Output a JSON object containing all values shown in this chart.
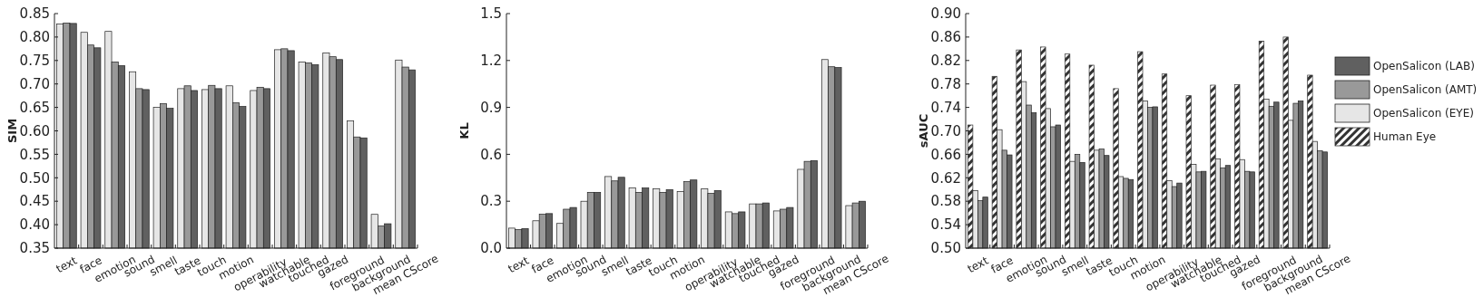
{
  "chart_data": [
    {
      "type": "bar",
      "ylabel": "SIM",
      "categories": [
        "text",
        "face",
        "emotion",
        "sound",
        "smell",
        "taste",
        "touch",
        "motion",
        "operability",
        "watchable",
        "touched",
        "gazed",
        "foreground",
        "background",
        "mean CScore"
      ],
      "series": [
        {
          "color": "#e6e6e6",
          "values": [
            0.828,
            0.81,
            0.812,
            0.726,
            0.65,
            0.69,
            0.688,
            0.696,
            0.686,
            0.773,
            0.747,
            0.766,
            0.621,
            0.422,
            0.751
          ]
        },
        {
          "color": "#999999",
          "values": [
            0.83,
            0.783,
            0.747,
            0.69,
            0.658,
            0.696,
            0.697,
            0.66,
            0.693,
            0.775,
            0.745,
            0.758,
            0.587,
            0.397,
            0.736
          ]
        },
        {
          "color": "#606060",
          "values": [
            0.829,
            0.777,
            0.739,
            0.688,
            0.648,
            0.686,
            0.69,
            0.652,
            0.69,
            0.771,
            0.741,
            0.752,
            0.585,
            0.402,
            0.73
          ]
        }
      ],
      "ylim": [
        0.35,
        0.85
      ],
      "yticks": [
        {
          "value": 0.35,
          "label": "0.35"
        },
        {
          "value": 0.4,
          "label": "0.40"
        },
        {
          "value": 0.45,
          "label": "0.45"
        },
        {
          "value": 0.5,
          "label": "0.50"
        },
        {
          "value": 0.55,
          "label": "0.55"
        },
        {
          "value": 0.6,
          "label": "0.60"
        },
        {
          "value": 0.65,
          "label": "0.65"
        },
        {
          "value": 0.7,
          "label": "0.70"
        },
        {
          "value": 0.75,
          "label": "0.75"
        },
        {
          "value": 0.8,
          "label": "0.80"
        },
        {
          "value": 0.85,
          "label": "0.85"
        }
      ],
      "grid": false,
      "legend": false
    },
    {
      "type": "bar",
      "ylabel": "KL",
      "categories": [
        "text",
        "face",
        "emotion",
        "sound",
        "smell",
        "taste",
        "touch",
        "motion",
        "operability",
        "watchable",
        "touched",
        "gazed",
        "foreground",
        "background",
        "mean CScore"
      ],
      "series": [
        {
          "color": "#e6e6e6",
          "values": [
            0.128,
            0.175,
            0.158,
            0.3,
            0.458,
            0.385,
            0.379,
            0.362,
            0.379,
            0.232,
            0.283,
            0.238,
            0.504,
            1.206,
            0.272
          ]
        },
        {
          "color": "#999999",
          "values": [
            0.119,
            0.217,
            0.249,
            0.357,
            0.43,
            0.357,
            0.357,
            0.425,
            0.351,
            0.221,
            0.283,
            0.249,
            0.555,
            1.16,
            0.289
          ]
        },
        {
          "color": "#606060",
          "values": [
            0.125,
            0.221,
            0.26,
            0.357,
            0.453,
            0.385,
            0.374,
            0.436,
            0.368,
            0.232,
            0.289,
            0.26,
            0.56,
            1.155,
            0.3
          ]
        }
      ],
      "ylim": [
        0,
        1.5
      ],
      "yticks": [
        {
          "value": 0,
          "label": "0.0"
        },
        {
          "value": 0.3,
          "label": "0.3"
        },
        {
          "value": 0.6,
          "label": "0.6"
        },
        {
          "value": 0.9,
          "label": "0.9"
        },
        {
          "value": 1.2,
          "label": "1.2"
        },
        {
          "value": 1.5,
          "label": "1.5"
        }
      ],
      "grid": false,
      "legend": false
    },
    {
      "type": "bar",
      "ylabel": "sAUC",
      "categories": [
        "text",
        "face",
        "emotion",
        "sound",
        "smell",
        "taste",
        "touch",
        "motion",
        "operability",
        "watchable",
        "touched",
        "gazed",
        "foreground",
        "background",
        "mean CScore"
      ],
      "series": [
        {
          "name": "Human Eye",
          "color": "#333333",
          "values": [
            0.71,
            0.793,
            0.838,
            0.843,
            0.831,
            0.812,
            0.772,
            0.835,
            0.797,
            0.76,
            0.778,
            0.779,
            0.853,
            0.86,
            0.795
          ]
        },
        {
          "name": "OpenSalicon (EYE)",
          "color": "#e6e6e6",
          "values": [
            0.598,
            0.702,
            0.784,
            0.738,
            0.648,
            0.667,
            0.622,
            0.751,
            0.615,
            0.643,
            0.652,
            0.651,
            0.754,
            0.718,
            0.682
          ]
        },
        {
          "name": "OpenSalicon (AMT)",
          "color": "#999999",
          "values": [
            0.581,
            0.667,
            0.744,
            0.707,
            0.66,
            0.669,
            0.619,
            0.74,
            0.605,
            0.63,
            0.637,
            0.631,
            0.742,
            0.747,
            0.666
          ]
        },
        {
          "name": "OpenSalicon (LAB)",
          "color": "#606060",
          "values": [
            0.587,
            0.659,
            0.731,
            0.71,
            0.646,
            0.658,
            0.617,
            0.741,
            0.611,
            0.631,
            0.641,
            0.63,
            0.749,
            0.751,
            0.664
          ]
        }
      ],
      "ylim": [
        0.5,
        0.9
      ],
      "yticks": [
        {
          "value": 0.5,
          "label": "0.50"
        },
        {
          "value": 0.54,
          "label": "0.54"
        },
        {
          "value": 0.58,
          "label": "0.58"
        },
        {
          "value": 0.62,
          "label": "0.62"
        },
        {
          "value": 0.66,
          "label": "0.66"
        },
        {
          "value": 0.7,
          "label": "0.70"
        },
        {
          "value": 0.74,
          "label": "0.74"
        },
        {
          "value": 0.78,
          "label": "0.78"
        },
        {
          "value": 0.82,
          "label": "0.82"
        },
        {
          "value": 0.86,
          "label": "0.86"
        },
        {
          "value": 0.9,
          "label": "0.90"
        }
      ],
      "grid": false,
      "legend": "right"
    }
  ]
}
